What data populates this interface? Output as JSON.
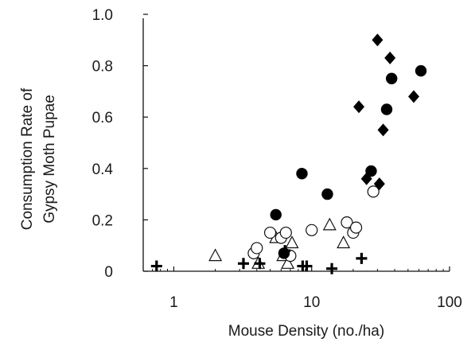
{
  "chart_data": {
    "type": "scatter",
    "xscale": "log",
    "xlim": [
      0.6,
      100
    ],
    "ylim": [
      0,
      1.0
    ],
    "xlabel": "Mouse Density (no./ha)",
    "ylabel_lines": [
      "Consumption Rate of",
      "Gypsy Moth Pupae"
    ],
    "xticks": [
      {
        "value": 1,
        "label": "1"
      },
      {
        "value": 10,
        "label": "10"
      },
      {
        "value": 100,
        "label": "100"
      }
    ],
    "yticks": [
      {
        "value": 0,
        "label": "0"
      },
      {
        "value": 0.2,
        "label": "0.2"
      },
      {
        "value": 0.4,
        "label": "0.4"
      },
      {
        "value": 0.6,
        "label": "0.6"
      },
      {
        "value": 0.8,
        "label": "0.8"
      },
      {
        "value": 1.0,
        "label": "1.0"
      }
    ],
    "grid": false,
    "series": [
      {
        "marker": "filled-diamond",
        "points": [
          [
            22,
            0.64
          ],
          [
            25,
            0.36
          ],
          [
            30,
            0.9
          ],
          [
            31,
            0.34
          ],
          [
            33,
            0.55
          ],
          [
            37,
            0.83
          ],
          [
            55,
            0.68
          ]
        ]
      },
      {
        "marker": "filled-circle",
        "points": [
          [
            5.5,
            0.22
          ],
          [
            6.3,
            0.07
          ],
          [
            8.5,
            0.38
          ],
          [
            13,
            0.3
          ],
          [
            27,
            0.39
          ],
          [
            35,
            0.63
          ],
          [
            38,
            0.75
          ],
          [
            62,
            0.78
          ]
        ]
      },
      {
        "marker": "open-circle",
        "points": [
          [
            3.8,
            0.07
          ],
          [
            4.0,
            0.09
          ],
          [
            5.0,
            0.15
          ],
          [
            6.0,
            0.13
          ],
          [
            6.5,
            0.15
          ],
          [
            7.0,
            0.06
          ],
          [
            10,
            0.16
          ],
          [
            18,
            0.19
          ],
          [
            20,
            0.15
          ],
          [
            21,
            0.17
          ],
          [
            28,
            0.31
          ]
        ]
      },
      {
        "marker": "open-triangle",
        "points": [
          [
            2.0,
            0.06
          ],
          [
            4.1,
            0.03
          ],
          [
            5.5,
            0.13
          ],
          [
            6.2,
            0.06
          ],
          [
            6.7,
            0.03
          ],
          [
            7.2,
            0.11
          ],
          [
            13.5,
            0.18
          ],
          [
            17,
            0.11
          ]
        ]
      },
      {
        "marker": "plus",
        "points": [
          [
            0.75,
            0.02
          ],
          [
            3.2,
            0.03
          ],
          [
            4.2,
            0.03
          ],
          [
            6.4,
            0.08
          ],
          [
            8.6,
            0.02
          ],
          [
            9.2,
            0.02
          ],
          [
            14,
            0.01
          ],
          [
            23,
            0.05
          ]
        ]
      }
    ]
  }
}
